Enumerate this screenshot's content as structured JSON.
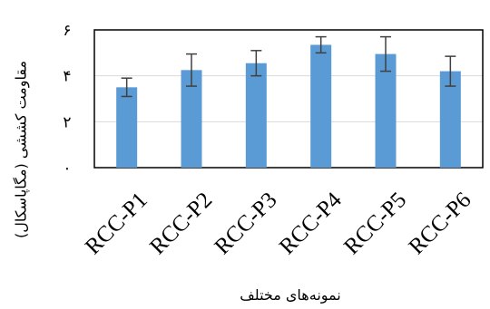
{
  "chart_data": {
    "type": "bar",
    "categories": [
      "RCC-P1",
      "RCC-P2",
      "RCC-P3",
      "RCC-P4",
      "RCC-P5",
      "RCC-P6"
    ],
    "values": [
      3.5,
      4.25,
      4.55,
      5.35,
      4.95,
      4.2
    ],
    "error": [
      0.4,
      0.7,
      0.55,
      0.35,
      0.75,
      0.65
    ],
    "ylim": [
      0,
      6
    ],
    "yticks": [
      {
        "value": 0,
        "label": "۰"
      },
      {
        "value": 2,
        "label": "۲"
      },
      {
        "value": 4,
        "label": "۴"
      },
      {
        "value": 6,
        "label": "۶"
      }
    ],
    "xlabel": "نمونه‌های مختلف",
    "ylabel": "مقاومت کششی (مگاپاسکال)",
    "grid": true,
    "bar_color": "#5b9bd5",
    "error_color": "#404040",
    "grid_color": "#d9d9d9"
  }
}
